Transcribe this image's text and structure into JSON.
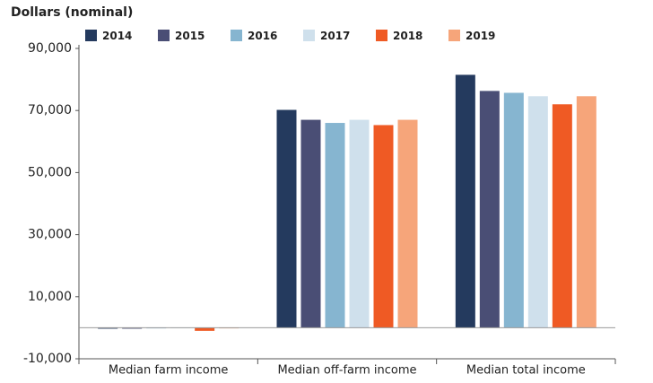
{
  "chart_data": {
    "type": "bar",
    "title": "Dollars (nominal)",
    "categories": [
      "Median farm income",
      "Median off-farm income",
      "Median total income"
    ],
    "series": [
      {
        "name": "2014",
        "color": "#243a5e",
        "values": [
          -300,
          70200,
          81500
        ]
      },
      {
        "name": "2015",
        "color": "#4a4e75",
        "values": [
          -300,
          67000,
          76300
        ]
      },
      {
        "name": "2016",
        "color": "#86b5d0",
        "values": [
          -200,
          66000,
          75700
        ]
      },
      {
        "name": "2017",
        "color": "#cfe0ec",
        "values": [
          -100,
          67000,
          74600
        ]
      },
      {
        "name": "2018",
        "color": "#ef5a24",
        "values": [
          -1000,
          65300,
          72000
        ]
      },
      {
        "name": "2019",
        "color": "#f6a57a",
        "values": [
          -200,
          67000,
          74600
        ]
      }
    ],
    "ylim": [
      -10000,
      90000
    ],
    "yticks": [
      {
        "value": -10000,
        "label": "-10,000"
      },
      {
        "value": 10000,
        "label": "10,000"
      },
      {
        "value": 30000,
        "label": "30,000"
      },
      {
        "value": 50000,
        "label": "50,000"
      },
      {
        "value": 70000,
        "label": "70,000"
      },
      {
        "value": 90000,
        "label": "90,000"
      }
    ],
    "grid": false
  }
}
